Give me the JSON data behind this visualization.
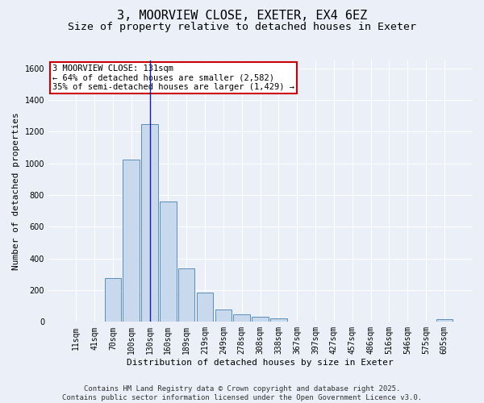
{
  "title_line1": "3, MOORVIEW CLOSE, EXETER, EX4 6EZ",
  "title_line2": "Size of property relative to detached houses in Exeter",
  "xlabel": "Distribution of detached houses by size in Exeter",
  "ylabel": "Number of detached properties",
  "bar_labels": [
    "11sqm",
    "41sqm",
    "70sqm",
    "100sqm",
    "130sqm",
    "160sqm",
    "189sqm",
    "219sqm",
    "249sqm",
    "278sqm",
    "308sqm",
    "338sqm",
    "367sqm",
    "397sqm",
    "427sqm",
    "457sqm",
    "486sqm",
    "516sqm",
    "546sqm",
    "575sqm",
    "605sqm"
  ],
  "bar_values": [
    0,
    0,
    275,
    1025,
    1250,
    760,
    335,
    185,
    80,
    50,
    30,
    20,
    0,
    0,
    0,
    0,
    0,
    0,
    0,
    0,
    15
  ],
  "bar_color": "#c9d9ed",
  "bar_edge_color": "#5b8db8",
  "background_color": "#eaeff8",
  "grid_color": "#ffffff",
  "vline_color": "#1a1aaa",
  "ylim": [
    0,
    1650
  ],
  "annotation_text": "3 MOORVIEW CLOSE: 131sqm\n← 64% of detached houses are smaller (2,582)\n35% of semi-detached houses are larger (1,429) →",
  "annotation_box_color": "#ffffff",
  "annotation_box_edge_color": "#cc0000",
  "footer_line1": "Contains HM Land Registry data © Crown copyright and database right 2025.",
  "footer_line2": "Contains public sector information licensed under the Open Government Licence v3.0.",
  "title_fontsize": 11,
  "subtitle_fontsize": 9.5,
  "axis_label_fontsize": 8,
  "tick_fontsize": 7,
  "annotation_fontsize": 7.5,
  "footer_fontsize": 6.5
}
